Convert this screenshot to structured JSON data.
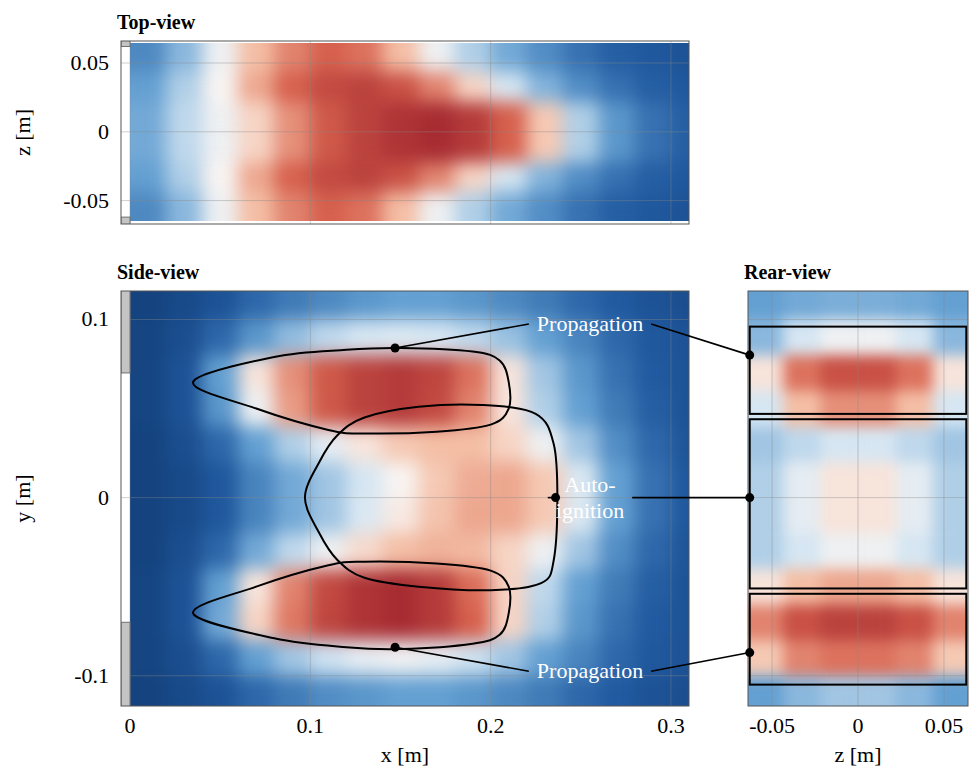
{
  "chart_data": [
    {
      "type": "heatmap",
      "title": "Top-view",
      "ylabel": "z [m]",
      "xlim": [
        -0.005,
        0.31
      ],
      "ylim": [
        -0.067,
        0.066
      ],
      "xticks": [
        0,
        0.1,
        0.2,
        0.3
      ],
      "yticks": [
        -0.05,
        0,
        0.05
      ],
      "tick_labels": "y",
      "grid": true,
      "clim": [
        0,
        1
      ],
      "x": [
        0.01,
        0.03,
        0.05,
        0.07,
        0.09,
        0.11,
        0.13,
        0.15,
        0.17,
        0.19,
        0.21,
        0.23,
        0.25,
        0.27,
        0.29,
        0.31
      ],
      "y": [
        0.054,
        0.033,
        0.011,
        -0.011,
        -0.033,
        -0.054
      ],
      "cells": [
        [
          0.25,
          0.35,
          0.5,
          0.62,
          0.72,
          0.78,
          0.75,
          0.62,
          0.5,
          0.4,
          0.32,
          0.26,
          0.2,
          0.16,
          0.14,
          0.12
        ],
        [
          0.3,
          0.4,
          0.52,
          0.66,
          0.78,
          0.84,
          0.86,
          0.82,
          0.72,
          0.58,
          0.45,
          0.34,
          0.26,
          0.2,
          0.16,
          0.14
        ],
        [
          0.32,
          0.42,
          0.5,
          0.58,
          0.7,
          0.8,
          0.86,
          0.9,
          0.92,
          0.88,
          0.78,
          0.6,
          0.4,
          0.28,
          0.2,
          0.16
        ],
        [
          0.32,
          0.42,
          0.5,
          0.58,
          0.7,
          0.8,
          0.86,
          0.9,
          0.92,
          0.88,
          0.78,
          0.6,
          0.4,
          0.28,
          0.2,
          0.16
        ],
        [
          0.3,
          0.4,
          0.52,
          0.66,
          0.78,
          0.84,
          0.86,
          0.82,
          0.72,
          0.58,
          0.45,
          0.34,
          0.26,
          0.2,
          0.16,
          0.14
        ],
        [
          0.25,
          0.35,
          0.5,
          0.62,
          0.72,
          0.78,
          0.75,
          0.62,
          0.5,
          0.4,
          0.32,
          0.26,
          0.2,
          0.16,
          0.14,
          0.12
        ]
      ],
      "walls": [
        {
          "x": [
            -0.005,
            0
          ],
          "y": [
            0.062,
            0.07
          ]
        },
        {
          "x": [
            -0.005,
            0
          ],
          "y": [
            -0.07,
            -0.062
          ]
        }
      ]
    },
    {
      "type": "heatmap",
      "title": "Side-view",
      "xlabel": "x [m]",
      "ylabel": "y [m]",
      "xlim": [
        -0.005,
        0.31
      ],
      "ylim": [
        -0.117,
        0.116
      ],
      "xticks": [
        0,
        0.1,
        0.2,
        0.3
      ],
      "yticks": [
        -0.1,
        0,
        0.1
      ],
      "tick_labels": true,
      "grid": true,
      "clim": [
        0,
        1
      ],
      "x": [
        0.01,
        0.03,
        0.05,
        0.07,
        0.09,
        0.11,
        0.13,
        0.15,
        0.17,
        0.19,
        0.21,
        0.23,
        0.25,
        0.27,
        0.29,
        0.31
      ],
      "y": [
        0.11,
        0.09,
        0.07,
        0.05,
        0.03,
        0.01,
        -0.01,
        -0.03,
        -0.05,
        -0.07,
        -0.09,
        -0.11
      ],
      "cells": [
        [
          0.05,
          0.08,
          0.12,
          0.18,
          0.22,
          0.25,
          0.28,
          0.3,
          0.3,
          0.28,
          0.25,
          0.22,
          0.18,
          0.15,
          0.12,
          0.1
        ],
        [
          0.06,
          0.1,
          0.18,
          0.28,
          0.36,
          0.42,
          0.45,
          0.46,
          0.45,
          0.42,
          0.37,
          0.3,
          0.24,
          0.18,
          0.14,
          0.12
        ],
        [
          0.06,
          0.12,
          0.3,
          0.55,
          0.7,
          0.8,
          0.86,
          0.88,
          0.85,
          0.75,
          0.55,
          0.38,
          0.28,
          0.2,
          0.15,
          0.12
        ],
        [
          0.06,
          0.12,
          0.28,
          0.5,
          0.68,
          0.8,
          0.86,
          0.88,
          0.84,
          0.72,
          0.55,
          0.4,
          0.3,
          0.22,
          0.16,
          0.12
        ],
        [
          0.05,
          0.1,
          0.18,
          0.3,
          0.4,
          0.48,
          0.55,
          0.6,
          0.62,
          0.62,
          0.58,
          0.5,
          0.38,
          0.26,
          0.18,
          0.13
        ],
        [
          0.05,
          0.08,
          0.14,
          0.24,
          0.32,
          0.38,
          0.45,
          0.52,
          0.6,
          0.65,
          0.66,
          0.6,
          0.46,
          0.3,
          0.2,
          0.14
        ],
        [
          0.05,
          0.08,
          0.14,
          0.24,
          0.32,
          0.38,
          0.46,
          0.54,
          0.61,
          0.66,
          0.66,
          0.6,
          0.46,
          0.3,
          0.2,
          0.14
        ],
        [
          0.05,
          0.1,
          0.18,
          0.32,
          0.42,
          0.5,
          0.57,
          0.62,
          0.64,
          0.63,
          0.58,
          0.5,
          0.38,
          0.26,
          0.18,
          0.13
        ],
        [
          0.06,
          0.12,
          0.3,
          0.55,
          0.72,
          0.84,
          0.9,
          0.92,
          0.88,
          0.76,
          0.58,
          0.42,
          0.3,
          0.22,
          0.16,
          0.12
        ],
        [
          0.06,
          0.12,
          0.32,
          0.58,
          0.74,
          0.85,
          0.9,
          0.92,
          0.88,
          0.78,
          0.58,
          0.4,
          0.28,
          0.2,
          0.15,
          0.12
        ],
        [
          0.06,
          0.1,
          0.18,
          0.3,
          0.38,
          0.44,
          0.48,
          0.5,
          0.48,
          0.44,
          0.38,
          0.3,
          0.24,
          0.18,
          0.14,
          0.12
        ],
        [
          0.05,
          0.08,
          0.12,
          0.18,
          0.22,
          0.26,
          0.28,
          0.3,
          0.3,
          0.28,
          0.25,
          0.22,
          0.18,
          0.15,
          0.12,
          0.1
        ]
      ],
      "walls": [
        {
          "x": [
            -0.005,
            0
          ],
          "y": [
            0.07,
            0.12
          ]
        },
        {
          "x": [
            -0.005,
            0
          ],
          "y": [
            -0.12,
            -0.07
          ]
        }
      ],
      "regions": [
        {
          "label": [
            "Propagation"
          ],
          "marker": [
            0.147,
            0.084
          ],
          "rear_marker": [
            -0.063,
            0.08
          ],
          "points": [
            [
              0.035,
              0.065
            ],
            [
              0.08,
              0.079
            ],
            [
              0.12,
              0.083
            ],
            [
              0.15,
              0.084
            ],
            [
              0.19,
              0.082
            ],
            [
              0.205,
              0.077
            ],
            [
              0.21,
              0.065
            ],
            [
              0.21,
              0.05
            ],
            [
              0.2,
              0.041
            ],
            [
              0.17,
              0.037
            ],
            [
              0.13,
              0.036
            ],
            [
              0.11,
              0.038
            ],
            [
              0.07,
              0.05
            ]
          ]
        },
        {
          "label": [
            "Auto-",
            "ignition"
          ],
          "marker": [
            0.236,
            0
          ],
          "rear_marker": [
            -0.063,
            0
          ],
          "points": [
            [
              0.097,
              0
            ],
            [
              0.105,
              0.02
            ],
            [
              0.115,
              0.035
            ],
            [
              0.13,
              0.045
            ],
            [
              0.16,
              0.051
            ],
            [
              0.195,
              0.052
            ],
            [
              0.225,
              0.047
            ],
            [
              0.235,
              0.03
            ],
            [
              0.237,
              0
            ],
            [
              0.235,
              -0.035
            ],
            [
              0.228,
              -0.048
            ],
            [
              0.2,
              -0.052
            ],
            [
              0.16,
              -0.05
            ],
            [
              0.13,
              -0.045
            ],
            [
              0.115,
              -0.035
            ],
            [
              0.105,
              -0.02
            ]
          ]
        },
        {
          "label": [
            "Propagation"
          ],
          "marker": [
            0.147,
            -0.084
          ],
          "rear_marker": [
            -0.063,
            -0.087
          ],
          "points": [
            [
              0.035,
              -0.065
            ],
            [
              0.07,
              -0.05
            ],
            [
              0.11,
              -0.038
            ],
            [
              0.13,
              -0.036
            ],
            [
              0.17,
              -0.037
            ],
            [
              0.2,
              -0.041
            ],
            [
              0.21,
              -0.05
            ],
            [
              0.21,
              -0.065
            ],
            [
              0.205,
              -0.077
            ],
            [
              0.19,
              -0.082
            ],
            [
              0.15,
              -0.085
            ],
            [
              0.12,
              -0.084
            ],
            [
              0.08,
              -0.079
            ]
          ]
        }
      ]
    },
    {
      "type": "heatmap",
      "title": "Rear-view",
      "xlabel": "z [m]",
      "xlim": [
        -0.064,
        0.064
      ],
      "ylim": [
        -0.117,
        0.116
      ],
      "xticks": [
        -0.05,
        0,
        0.05
      ],
      "yticks": [
        -0.1,
        0,
        0.1
      ],
      "tick_labels": "x",
      "grid": true,
      "clim": [
        0,
        1
      ],
      "x": [
        -0.054,
        -0.033,
        -0.011,
        0.011,
        0.033,
        0.054
      ],
      "y": [
        0.11,
        0.09,
        0.07,
        0.05,
        0.03,
        0.01,
        -0.01,
        -0.03,
        -0.05,
        -0.07,
        -0.09,
        -0.11
      ],
      "cells": [
        [
          0.3,
          0.32,
          0.33,
          0.33,
          0.32,
          0.3
        ],
        [
          0.35,
          0.45,
          0.5,
          0.5,
          0.45,
          0.35
        ],
        [
          0.55,
          0.75,
          0.82,
          0.82,
          0.75,
          0.55
        ],
        [
          0.45,
          0.62,
          0.7,
          0.7,
          0.62,
          0.45
        ],
        [
          0.38,
          0.42,
          0.45,
          0.45,
          0.42,
          0.38
        ],
        [
          0.4,
          0.48,
          0.55,
          0.55,
          0.48,
          0.4
        ],
        [
          0.4,
          0.48,
          0.55,
          0.55,
          0.48,
          0.4
        ],
        [
          0.4,
          0.45,
          0.5,
          0.5,
          0.45,
          0.4
        ],
        [
          0.55,
          0.62,
          0.66,
          0.66,
          0.62,
          0.55
        ],
        [
          0.72,
          0.82,
          0.86,
          0.86,
          0.82,
          0.72
        ],
        [
          0.6,
          0.72,
          0.75,
          0.75,
          0.72,
          0.6
        ],
        [
          0.3,
          0.35,
          0.38,
          0.38,
          0.35,
          0.3
        ]
      ],
      "boxes": [
        {
          "z": [
            -0.063,
            0.063
          ],
          "y": [
            0.047,
            0.096
          ]
        },
        {
          "z": [
            -0.063,
            0.063
          ],
          "y": [
            -0.051,
            0.044
          ]
        },
        {
          "z": [
            -0.063,
            0.063
          ],
          "y": [
            -0.105,
            -0.054
          ]
        }
      ]
    }
  ]
}
